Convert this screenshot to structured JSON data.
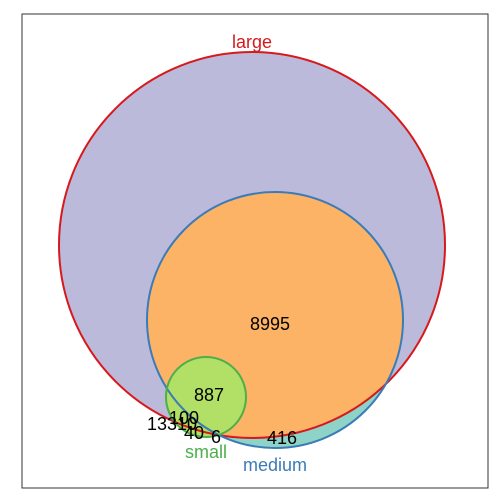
{
  "diagram": {
    "type": "euler-venn",
    "sets": [
      {
        "id": "large",
        "label": "large",
        "stroke": "#d7191c",
        "fill": "#bcbadb"
      },
      {
        "id": "medium",
        "label": "medium",
        "stroke": "#3a7bb8",
        "fill": "#fdb366"
      },
      {
        "id": "small",
        "label": "small",
        "stroke": "#4daf4a",
        "fill": "#b2df66"
      }
    ],
    "region_colors": {
      "medium_only": "#8dd3c7",
      "medium_and_large": "#fdb366",
      "small_overlap": "#b2df66"
    },
    "counts": {
      "large_only": "13310",
      "medium_and_large": "8995",
      "medium_only": "416",
      "all_three": "887",
      "small_and_large": "100",
      "small_and_medium": "40",
      "small_only": "6"
    }
  }
}
